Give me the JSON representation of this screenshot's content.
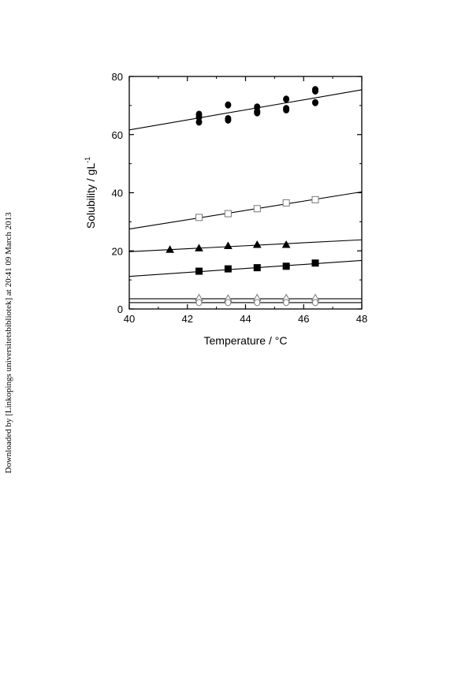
{
  "watermark": "Downloaded by [Linkopings universitetsbibliotek] at 20:41 09 March 2013",
  "chart_data": {
    "type": "scatter",
    "xlabel": "Temperature / °C",
    "ylabel": "Solubility / gL",
    "ylabel_sup": "-1",
    "xlim": [
      40,
      48
    ],
    "ylim": [
      0,
      80
    ],
    "xticks": [
      40,
      42,
      44,
      46,
      48
    ],
    "yticks": [
      0,
      20,
      40,
      60,
      80
    ],
    "grid": false,
    "series": [
      {
        "marker": "circle-filled",
        "points": [
          [
            42.4,
            64.3
          ],
          [
            42.4,
            66.0
          ],
          [
            42.4,
            67.0
          ],
          [
            43.4,
            65.0
          ],
          [
            43.4,
            65.5
          ],
          [
            43.4,
            70.2
          ],
          [
            44.4,
            67.5
          ],
          [
            44.4,
            68.0
          ],
          [
            44.4,
            69.5
          ],
          [
            45.4,
            68.5
          ],
          [
            45.4,
            69.0
          ],
          [
            45.4,
            72.2
          ],
          [
            46.4,
            71.0
          ],
          [
            46.4,
            75.0
          ],
          [
            46.4,
            75.5
          ]
        ],
        "fit": [
          [
            40,
            61.6
          ],
          [
            48,
            75.4
          ]
        ]
      },
      {
        "marker": "square-open",
        "points": [
          [
            42.4,
            31.5
          ],
          [
            43.4,
            32.8
          ],
          [
            44.4,
            34.5
          ],
          [
            45.4,
            36.5
          ],
          [
            46.4,
            37.6
          ]
        ],
        "fit": [
          [
            40,
            27.5
          ],
          [
            48,
            40.3
          ]
        ]
      },
      {
        "marker": "triangle-filled",
        "points": [
          [
            41.4,
            20.4
          ],
          [
            42.4,
            20.9
          ],
          [
            43.4,
            21.7
          ],
          [
            44.4,
            22.1
          ],
          [
            45.4,
            22.1
          ]
        ],
        "fit": [
          [
            40,
            19.7
          ],
          [
            48,
            23.8
          ]
        ]
      },
      {
        "marker": "square-filled",
        "points": [
          [
            42.4,
            13.0
          ],
          [
            43.4,
            13.8
          ],
          [
            44.4,
            14.2
          ],
          [
            45.4,
            14.7
          ],
          [
            46.4,
            15.8
          ]
        ],
        "fit": [
          [
            40,
            11.2
          ],
          [
            48,
            16.7
          ]
        ]
      },
      {
        "marker": "triangle-open",
        "points": [
          [
            42.4,
            3.8
          ],
          [
            43.4,
            3.6
          ],
          [
            44.4,
            3.8
          ],
          [
            45.4,
            3.8
          ],
          [
            46.4,
            3.8
          ]
        ],
        "fit": [
          [
            40,
            3.5
          ],
          [
            48,
            3.5
          ]
        ]
      },
      {
        "marker": "circle-open",
        "points": [
          [
            42.4,
            2.2
          ],
          [
            43.4,
            2.2
          ],
          [
            44.4,
            2.2
          ],
          [
            45.4,
            2.2
          ],
          [
            46.4,
            2.2
          ]
        ],
        "fit": [
          [
            40,
            2.2
          ],
          [
            48,
            2.2
          ]
        ]
      }
    ]
  }
}
